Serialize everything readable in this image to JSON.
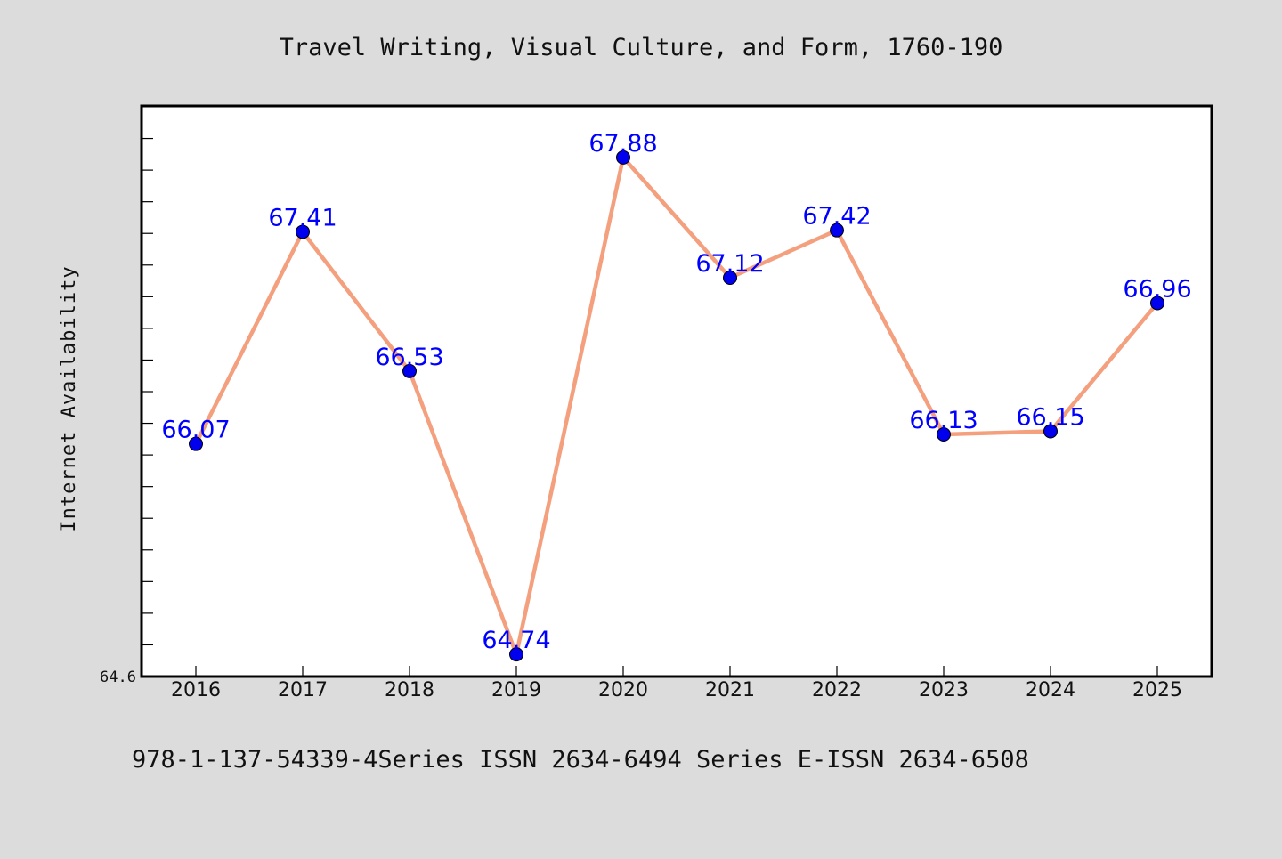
{
  "chart_data": {
    "type": "line",
    "title": "Travel Writing, Visual Culture, and Form, 1760-190",
    "xlabel": "",
    "ylabel": "Internet Availability",
    "categories": [
      "2016",
      "2017",
      "2018",
      "2019",
      "2020",
      "2021",
      "2022",
      "2023",
      "2024",
      "2025"
    ],
    "series": [
      {
        "values": [
          66.07,
          67.41,
          66.53,
          64.74,
          67.88,
          67.12,
          67.42,
          66.13,
          66.15,
          66.96
        ],
        "line_color": "#f4a07e",
        "marker_color": "#0000ee",
        "label_color": "#0000ff"
      }
    ],
    "ylim": [
      64.6,
      68.2
    ],
    "y_tick_label": "64.6",
    "grid": false,
    "legend": "none"
  },
  "footer": {
    "text": "978-1-137-54339-4Series ISSN 2634-6494 Series E-ISSN 2634-6508"
  }
}
